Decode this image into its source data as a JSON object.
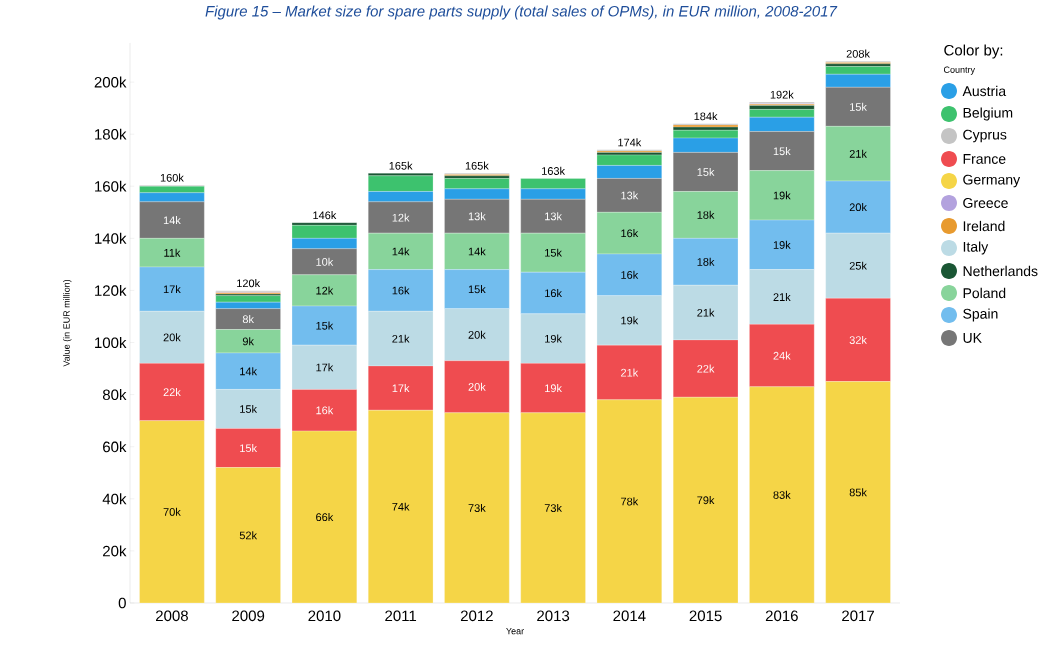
{
  "chart_data": {
    "type": "bar",
    "stacked": true,
    "title": "Figure 15 – Market size for spare parts supply (total sales of OPMs), in EUR million, 2008-2017",
    "xlabel": "Year",
    "ylabel": "Value (in EUR million)",
    "legend_title": "Color by:",
    "annotations": [
      "Country"
    ],
    "categories": [
      "2008",
      "2009",
      "2010",
      "2011",
      "2012",
      "2013",
      "2014",
      "2015",
      "2016",
      "2017"
    ],
    "ylim": [
      0,
      215000
    ],
    "yticks": [
      {
        "value": 0,
        "label": "0"
      },
      {
        "value": 20000,
        "label": "20k"
      },
      {
        "value": 40000,
        "label": "40k"
      },
      {
        "value": 60000,
        "label": "60k"
      },
      {
        "value": 80000,
        "label": "80k"
      },
      {
        "value": 100000,
        "label": "100k"
      },
      {
        "value": 120000,
        "label": "120k"
      },
      {
        "value": 140000,
        "label": "140k"
      },
      {
        "value": 160000,
        "label": "160k"
      },
      {
        "value": 180000,
        "label": "180k"
      },
      {
        "value": 200000,
        "label": "200k"
      }
    ],
    "legend": "right",
    "grid": false,
    "totals": [
      "160k",
      "120k",
      "146k",
      "165k",
      "165k",
      "163k",
      "174k",
      "184k",
      "192k",
      "208k"
    ],
    "series": [
      {
        "name": "Germany",
        "color": "#f5d547",
        "values": [
          70000,
          52000,
          66000,
          74000,
          73000,
          73000,
          78000,
          79000,
          83000,
          85000
        ],
        "value_labels": [
          "70k",
          "52k",
          "66k",
          "74k",
          "73k",
          "73k",
          "78k",
          "79k",
          "83k",
          "85k"
        ]
      },
      {
        "name": "France",
        "color": "#ef4c50",
        "values": [
          22000,
          15000,
          16000,
          17000,
          20000,
          19000,
          21000,
          22000,
          24000,
          32000
        ],
        "value_labels": [
          "22k",
          "15k",
          "16k",
          "17k",
          "20k",
          "19k",
          "21k",
          "22k",
          "24k",
          "32k"
        ]
      },
      {
        "name": "Italy",
        "color": "#bcdbe5",
        "values": [
          20000,
          15000,
          17000,
          21000,
          20000,
          19000,
          19000,
          21000,
          21000,
          25000
        ],
        "value_labels": [
          "20k",
          "15k",
          "17k",
          "21k",
          "20k",
          "19k",
          "19k",
          "21k",
          "21k",
          "25k"
        ]
      },
      {
        "name": "Spain",
        "color": "#72bdee",
        "values": [
          17000,
          14000,
          15000,
          16000,
          15000,
          16000,
          16000,
          18000,
          19000,
          20000
        ],
        "value_labels": [
          "17k",
          "14k",
          "15k",
          "16k",
          "15k",
          "16k",
          "16k",
          "18k",
          "19k",
          "20k"
        ]
      },
      {
        "name": "Poland",
        "color": "#88d49b",
        "values": [
          11000,
          9000,
          12000,
          14000,
          14000,
          15000,
          16000,
          18000,
          19000,
          21000
        ],
        "value_labels": [
          "11k",
          "9k",
          "12k",
          "14k",
          "14k",
          "15k",
          "16k",
          "18k",
          "19k",
          "21k"
        ]
      },
      {
        "name": "UK",
        "color": "#767676",
        "values": [
          14000,
          8000,
          10000,
          12000,
          13000,
          13000,
          13000,
          15000,
          15000,
          15000
        ],
        "value_labels": [
          "14k",
          "8k",
          "10k",
          "12k",
          "13k",
          "13k",
          "13k",
          "15k",
          "15k",
          "15k"
        ]
      },
      {
        "name": "Austria",
        "color": "#2a9fe6",
        "values": [
          3500,
          2500,
          4000,
          4000,
          4000,
          4000,
          5000,
          5500,
          5500,
          5000
        ]
      },
      {
        "name": "Belgium",
        "color": "#3dc26e",
        "values": [
          2500,
          2500,
          5000,
          6000,
          4000,
          4000,
          4000,
          3000,
          3000,
          3000
        ]
      },
      {
        "name": "Netherlands",
        "color": "#1a5634",
        "values": [
          null,
          600,
          1000,
          1000,
          1000,
          null,
          1000,
          1200,
          1500,
          1000
        ]
      },
      {
        "name": "Ireland",
        "color": "#e89a2e",
        "values": [
          null,
          500,
          null,
          null,
          500,
          null,
          500,
          800,
          500,
          500
        ]
      },
      {
        "name": "Greece",
        "color": "#b3a2de",
        "values": [
          null,
          300,
          null,
          null,
          null,
          null,
          null,
          null,
          300,
          null
        ]
      },
      {
        "name": "Cyprus",
        "color": "#c4c4c4",
        "values": [
          400,
          500,
          null,
          null,
          500,
          null,
          500,
          500,
          500,
          500
        ]
      }
    ]
  }
}
